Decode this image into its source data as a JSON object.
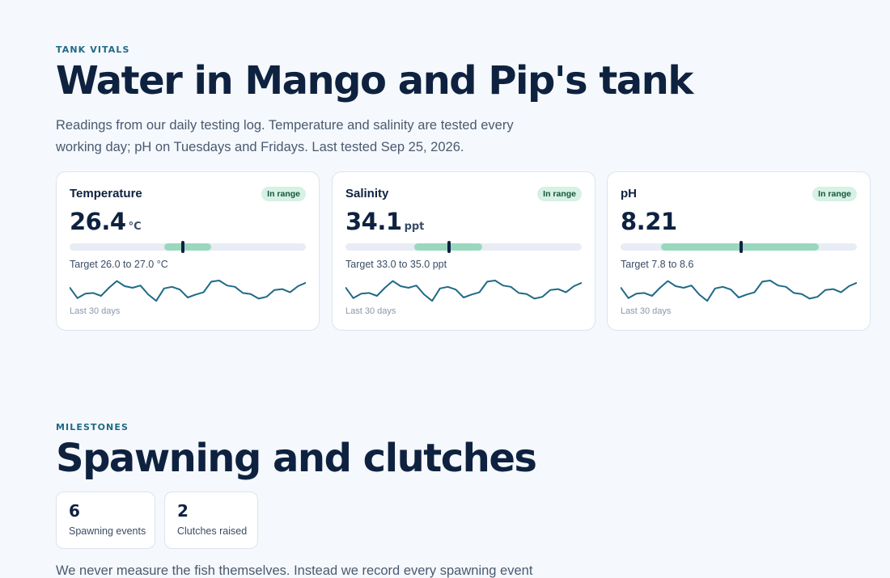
{
  "vitals": {
    "eyebrow": "TANK VITALS",
    "title": "Water in Mango and Pip's tank",
    "description": "Readings from our daily testing log. Temperature and salinity are tested every working day; pH on Tuesdays and Fridays. Last tested Sep 25, 2026.",
    "cards": [
      {
        "name": "Temperature",
        "status": "In range",
        "value": "26.4",
        "unit": "°C",
        "target": "Target 26.0 to 27.0 °C",
        "period": "Last 30 days",
        "band": {
          "start": 0.4,
          "end": 0.6
        },
        "marker": 0.48
      },
      {
        "name": "Salinity",
        "status": "In range",
        "value": "34.1",
        "unit": "ppt",
        "target": "Target 33.0 to 35.0 ppt",
        "period": "Last 30 days",
        "band": {
          "start": 0.29,
          "end": 0.58
        },
        "marker": 0.44
      },
      {
        "name": "pH",
        "status": "In range",
        "value": "8.21",
        "unit": "",
        "target": "Target 7.8 to 8.6",
        "period": "Last 30 days",
        "band": {
          "start": 0.17,
          "end": 0.84
        },
        "marker": 0.51
      }
    ],
    "trend": [
      0.7,
      0.22,
      0.42,
      0.45,
      0.32,
      0.68,
      0.98,
      0.75,
      0.68,
      0.78,
      0.38,
      0.1,
      0.65,
      0.72,
      0.6,
      0.25,
      0.38,
      0.48,
      0.95,
      1.0,
      0.78,
      0.72,
      0.45,
      0.4,
      0.2,
      0.28,
      0.58,
      0.62,
      0.48,
      0.75,
      0.9
    ]
  },
  "milestones": {
    "eyebrow": "MILESTONES",
    "title": "Spawning and clutches",
    "stats": [
      {
        "value": "6",
        "label": "Spawning events"
      },
      {
        "value": "2",
        "label": "Clutches raised"
      }
    ],
    "description": "We never measure the fish themselves. Instead we record every spawning event"
  }
}
